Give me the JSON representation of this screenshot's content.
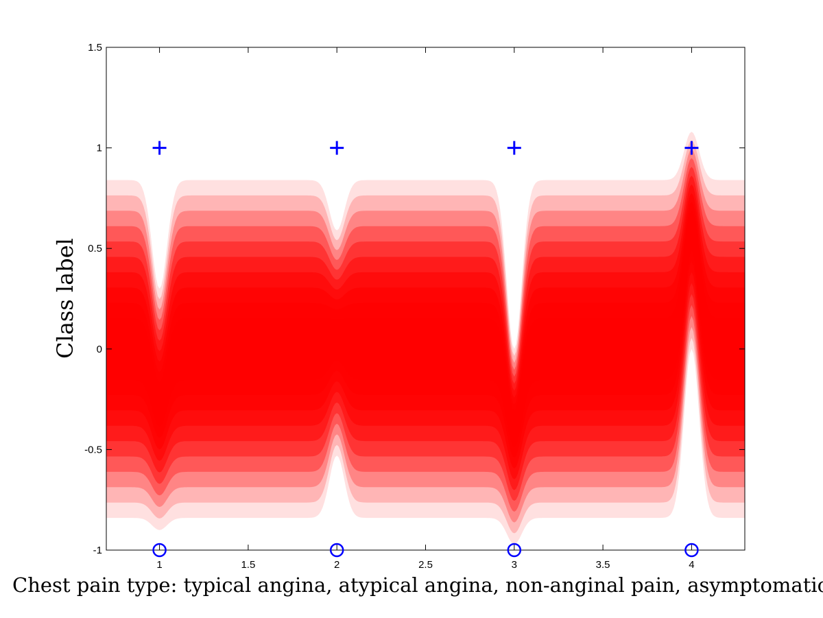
{
  "chart_data": {
    "type": "area",
    "xlabel": "Chest pain type: typical angina, atypical angina, non-anginal pain, asymptomatic",
    "ylabel": "Class label",
    "xlim": [
      0.7,
      4.3
    ],
    "ylim": [
      -1,
      1.5
    ],
    "xticks": [
      1,
      1.5,
      2,
      2.5,
      3,
      3.5,
      4
    ],
    "xtick_labels": [
      "1",
      "1.5",
      "2",
      "2.5",
      "3",
      "3.5",
      "4"
    ],
    "yticks": [
      -1,
      -0.5,
      0,
      0.5,
      1,
      1.5
    ],
    "ytick_labels": [
      "-1",
      "-0.5",
      "0",
      "0.5",
      "1",
      "1.5"
    ],
    "grid": false,
    "series": [
      {
        "marker": "plus",
        "color": "#0000ff",
        "x": [
          1,
          2,
          3,
          4
        ],
        "y": [
          1,
          1,
          1,
          1
        ]
      },
      {
        "marker": "circle",
        "color": "#0000ff",
        "x": [
          1,
          2,
          3,
          4
        ],
        "y": [
          -1,
          -1,
          -1,
          -1
        ]
      }
    ],
    "predictive_band": {
      "color": "#ff0000",
      "background_mean": 0.0,
      "background_outer_halfwidth": 0.84,
      "centers": [
        {
          "x": 1,
          "mean": -0.27,
          "upper": 0.3,
          "lower": -0.9
        },
        {
          "x": 2,
          "mean": 0.05,
          "upper": 0.59,
          "lower": -0.53
        },
        {
          "x": 3,
          "mean": -0.38,
          "upper": 0.0,
          "lower": -0.97
        },
        {
          "x": 4,
          "mean": 0.6,
          "upper": 1.08,
          "lower": 0.0
        }
      ]
    }
  }
}
